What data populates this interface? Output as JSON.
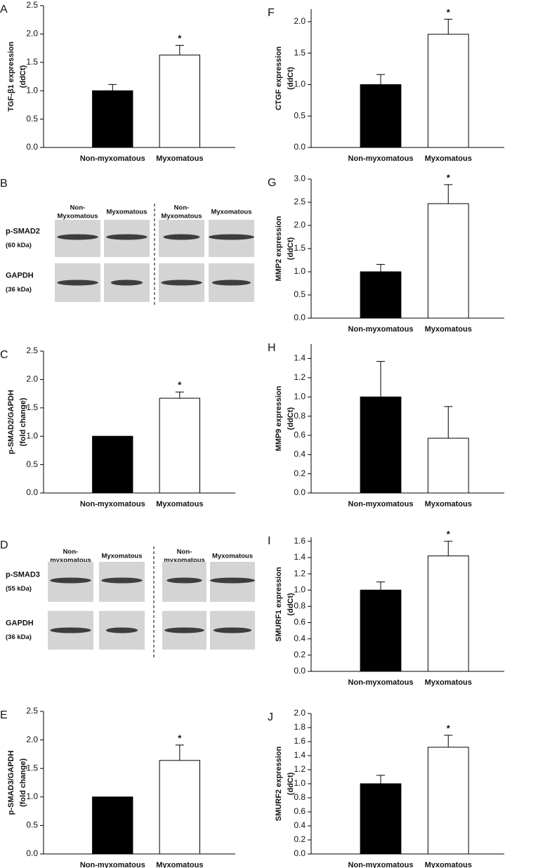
{
  "chart_data": [
    {
      "type": "bar",
      "panel": "A",
      "ylabel": [
        "TGF-β1 expression",
        "(ddCt)"
      ],
      "categories": [
        "Non-myxomatous",
        "Myxomatous"
      ],
      "values": [
        1.0,
        1.63
      ],
      "errors": [
        0.11,
        0.17
      ],
      "colors": [
        "#000000",
        "#ffffff"
      ],
      "ylim": [
        0,
        2.5
      ],
      "yticks": [
        {
          "value": 0,
          "label": "0.0"
        },
        0.5,
        {
          "value": 1,
          "label": "1.0"
        },
        1.5,
        {
          "value": 2,
          "label": "2.0"
        },
        2.5
      ],
      "annotations": [
        {
          "text": "*",
          "x": "Myxomatous"
        }
      ]
    },
    {
      "type": "bar",
      "panel": "C",
      "ylabel": [
        "p-SMAD2/GAPDH",
        "(fold change)"
      ],
      "categories": [
        "Non-myxomatous",
        "Myxomatous"
      ],
      "values": [
        1.0,
        1.67
      ],
      "errors": [
        null,
        0.11
      ],
      "colors": [
        "#000000",
        "#ffffff"
      ],
      "ylim": [
        0,
        2.5
      ],
      "yticks": [
        {
          "value": 0,
          "label": "0.0"
        },
        0.5,
        {
          "value": 1,
          "label": "1.0"
        },
        1.5,
        {
          "value": 2,
          "label": "2.0"
        },
        2.5
      ],
      "annotations": [
        {
          "text": "*",
          "x": "Myxomatous"
        }
      ]
    },
    {
      "type": "bar",
      "panel": "E",
      "ylabel": [
        "p-SMAD3/GAPDH",
        "(fold change)"
      ],
      "categories": [
        "Non-myxomatous",
        "Myxomatous"
      ],
      "values": [
        1.0,
        1.64
      ],
      "errors": [
        null,
        0.27
      ],
      "colors": [
        "#000000",
        "#ffffff"
      ],
      "ylim": [
        0,
        2.5
      ],
      "yticks": [
        {
          "value": 0,
          "label": "0.0"
        },
        0.5,
        {
          "value": 1,
          "label": "1.0"
        },
        1.5,
        {
          "value": 2,
          "label": "2.0"
        },
        2.5
      ],
      "annotations": [
        {
          "text": "*",
          "x": "Myxomatous"
        }
      ]
    },
    {
      "type": "bar",
      "panel": "F",
      "ylabel": [
        "CTGF expression",
        "(ddCt)"
      ],
      "categories": [
        "Non-myxomatous",
        "Myxomatous"
      ],
      "values": [
        1.0,
        1.8
      ],
      "errors": [
        0.16,
        0.24
      ],
      "colors": [
        "#000000",
        "#ffffff"
      ],
      "ylim": [
        0,
        2.2
      ],
      "yticks": [
        {
          "value": 0,
          "label": "0.0"
        },
        0.5,
        {
          "value": 1,
          "label": "1.0"
        },
        1.5,
        {
          "value": 2,
          "label": "2.0"
        }
      ],
      "annotations": [
        {
          "text": "*",
          "x": "Myxomatous"
        }
      ]
    },
    {
      "type": "bar",
      "panel": "G",
      "ylabel": [
        "MMP2 expression",
        "(ddCt)"
      ],
      "categories": [
        "Non-myxomatous",
        "Myxomatous"
      ],
      "values": [
        1.0,
        2.47
      ],
      "errors": [
        0.16,
        0.41
      ],
      "colors": [
        "#000000",
        "#ffffff"
      ],
      "ylim": [
        0,
        3
      ],
      "yticks": [
        {
          "value": 0,
          "label": "0.0"
        },
        0.5,
        {
          "value": 1,
          "label": "1.0"
        },
        1.5,
        {
          "value": 2,
          "label": "2.0"
        },
        2.5,
        {
          "value": 3,
          "label": "3.0"
        }
      ],
      "annotations": [
        {
          "text": "*",
          "x": "Myxomatous"
        }
      ]
    },
    {
      "type": "bar",
      "panel": "H",
      "ylabel": [
        "MMP9 expression",
        "(ddCt)"
      ],
      "categories": [
        "Non-myxomatous",
        "Myxomatous"
      ],
      "values": [
        1.0,
        0.57
      ],
      "errors": [
        0.37,
        0.33
      ],
      "colors": [
        "#000000",
        "#ffffff"
      ],
      "ylim": [
        0,
        1.55
      ],
      "yticks": [
        {
          "value": 0,
          "label": "0.0"
        },
        0.2,
        0.4,
        0.6,
        0.8,
        {
          "value": 1,
          "label": "1.0"
        },
        1.2,
        1.4
      ],
      "annotations": []
    },
    {
      "type": "bar",
      "panel": "I",
      "ylabel": [
        "SMURF1 expression",
        "(ddCt)"
      ],
      "categories": [
        "Non-myxomatous",
        "Myxomatous"
      ],
      "values": [
        1.0,
        1.42
      ],
      "errors": [
        0.1,
        0.18
      ],
      "colors": [
        "#000000",
        "#ffffff"
      ],
      "ylim": [
        0,
        1.65
      ],
      "yticks": [
        {
          "value": 0,
          "label": "0.0"
        },
        0.2,
        0.4,
        0.6,
        0.8,
        {
          "value": 1,
          "label": "1.0"
        },
        1.2,
        1.4,
        1.6
      ],
      "annotations": [
        {
          "text": "*",
          "x": "Myxomatous"
        }
      ]
    },
    {
      "type": "bar",
      "panel": "J",
      "ylabel": [
        "SMURF2 expression",
        "(ddCt)"
      ],
      "categories": [
        "Non-myxomatous",
        "Myxomatous"
      ],
      "values": [
        1.0,
        1.52
      ],
      "errors": [
        0.12,
        0.17
      ],
      "colors": [
        "#000000",
        "#ffffff"
      ],
      "ylim": [
        0,
        2
      ],
      "yticks": [
        {
          "value": 0,
          "label": "0.0"
        },
        0.2,
        0.4,
        0.6,
        0.8,
        {
          "value": 1,
          "label": "1.0"
        },
        1.2,
        1.4,
        1.6,
        1.8,
        {
          "value": 2,
          "label": "2.0"
        }
      ],
      "annotations": [
        {
          "text": "*",
          "x": "Myxomatous"
        }
      ]
    }
  ],
  "blots": [
    {
      "panel": "B",
      "lanes": [
        [
          "Non-",
          "Myxomatous"
        ],
        [
          "Myxomatous"
        ],
        [
          "Non-",
          "Myxomatous"
        ],
        [
          "Myxomatous"
        ]
      ],
      "rows": [
        {
          "protein": "p-SMAD2",
          "size": "(60 kDa)"
        },
        {
          "protein": "GAPDH",
          "size": "(36 kDa)"
        }
      ]
    },
    {
      "panel": "D",
      "lanes": [
        [
          "Non-",
          "myxomatous"
        ],
        [
          "Myxomatous"
        ],
        [
          "Non-",
          "myxomatous"
        ],
        [
          "Myxomatous"
        ]
      ],
      "rows": [
        {
          "protein": "p-SMAD3",
          "size": "(55 kDa)"
        },
        {
          "protein": "GAPDH",
          "size": "(36 kDa)"
        }
      ]
    }
  ]
}
